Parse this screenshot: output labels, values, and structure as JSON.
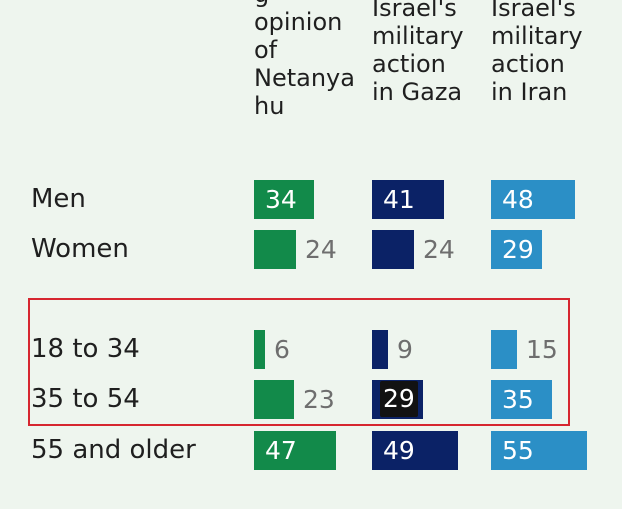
{
  "chart_data": {
    "type": "bar",
    "headers": [
      "g\nopinion\nof\nNetanya\nhu",
      "Israel's\nmilitary\naction\nin Gaza",
      "Israel's\nmilitary\naction\nin Iran"
    ],
    "categories": [
      "Men",
      "Women",
      "18 to 34",
      "35 to 54",
      "55 and older"
    ],
    "series": [
      {
        "values": [
          34,
          24,
          6,
          23,
          47
        ],
        "color": "#128a4a"
      },
      {
        "values": [
          41,
          24,
          9,
          29,
          49
        ],
        "color": "#0b2266"
      },
      {
        "values": [
          48,
          29,
          15,
          35,
          55
        ],
        "color": "#2b8fc6"
      }
    ],
    "label_inside": [
      [
        true,
        false,
        false,
        false,
        true
      ],
      [
        true,
        false,
        false,
        true,
        true
      ],
      [
        true,
        true,
        false,
        true,
        true
      ]
    ],
    "highlighted_value_box": {
      "row": 3,
      "series": 1
    },
    "highlight_rows": [
      2,
      3
    ],
    "highlight_color": "#d6262f",
    "background": "#eef5ee"
  }
}
